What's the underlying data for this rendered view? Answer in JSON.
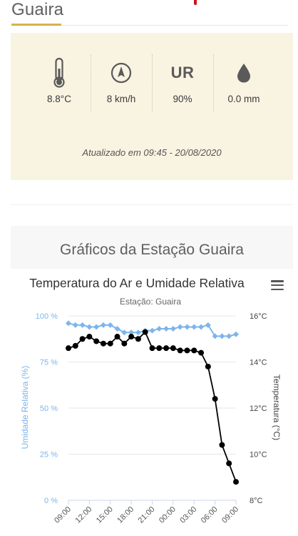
{
  "header": {
    "station_title": "Guaira"
  },
  "weather": {
    "temperature": "8.8°C",
    "wind": "8 km/h",
    "humidity_label": "UR",
    "humidity": "90%",
    "rain": "0.0 mm",
    "updated": "Atualizado em 09:45 - 20/08/2020",
    "icons": [
      "thermometer-icon",
      "wind-direction-icon",
      "humidity-ur-icon",
      "rain-drop-icon"
    ]
  },
  "graphs": {
    "heading": "Gráficos da Estação Guaira"
  },
  "chart_data": {
    "type": "line",
    "title": "Temperatura do Ar e Umidade Relativa",
    "subtitle": "Estação: Guaira",
    "x_tick_labels": [
      "09:00",
      "12:00",
      "15:00",
      "18:00",
      "21:00",
      "00:00",
      "03:00",
      "06:00",
      "09:00"
    ],
    "left_axis": {
      "label": "Umidade Relativa (%)",
      "ticks": [
        "0 %",
        "25 %",
        "50 %",
        "75 %",
        "100 %"
      ],
      "range": [
        0,
        100
      ]
    },
    "right_axis": {
      "label": "Temperatura (°C)",
      "ticks": [
        "8°C",
        "10°C",
        "12°C",
        "14°C",
        "16°C"
      ],
      "range": [
        8,
        16
      ]
    },
    "x_hours_range": [
      9,
      33
    ],
    "series": [
      {
        "axis": "left",
        "color": "#7cb5ec",
        "x_hours": [
          9,
          10,
          11,
          12,
          13,
          14,
          15,
          16,
          17,
          18,
          19,
          20,
          21,
          22,
          23,
          24,
          25,
          26,
          27,
          28,
          29,
          30,
          31,
          32,
          33
        ],
        "values": [
          96,
          95,
          95,
          94,
          94,
          95,
          95,
          93,
          91,
          91,
          91,
          92,
          92,
          93,
          93,
          93,
          94,
          94,
          94,
          94,
          95,
          89,
          89,
          89,
          90
        ]
      },
      {
        "axis": "right",
        "color": "#000000",
        "x_hours": [
          9,
          10,
          11,
          12,
          13,
          14,
          15,
          16,
          17,
          18,
          19,
          20,
          21,
          22,
          23,
          24,
          25,
          26,
          27,
          28,
          29,
          30,
          31,
          32,
          33
        ],
        "values": [
          14.6,
          14.7,
          15.0,
          15.1,
          14.9,
          14.8,
          14.8,
          15.1,
          14.8,
          15.1,
          15.0,
          15.3,
          14.6,
          14.6,
          14.6,
          14.6,
          14.5,
          14.5,
          14.5,
          14.4,
          13.8,
          12.4,
          10.4,
          9.6,
          8.8
        ]
      }
    ],
    "grid": true,
    "legend": "none"
  }
}
